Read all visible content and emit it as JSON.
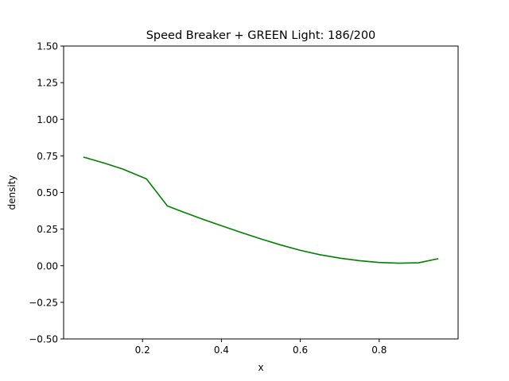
{
  "chart_data": {
    "type": "line",
    "title": "Speed Breaker + GREEN Light: 186/200",
    "xlabel": "x",
    "ylabel": "density",
    "xlim": [
      0.0,
      1.0
    ],
    "ylim": [
      -0.5,
      1.5
    ],
    "xticks": [
      0.2,
      0.4,
      0.6,
      0.8
    ],
    "xtick_labels": [
      "0.2",
      "0.4",
      "0.6",
      "0.8"
    ],
    "yticks": [
      -0.5,
      -0.25,
      0.0,
      0.25,
      0.5,
      0.75,
      1.0,
      1.25,
      1.5
    ],
    "ytick_labels": [
      "−0.50",
      "−0.25",
      "0.00",
      "0.25",
      "0.50",
      "0.75",
      "1.00",
      "1.25",
      "1.50"
    ],
    "grid": false,
    "legend": "none",
    "series": [
      {
        "color": "#008000",
        "x": [
          0.05,
          0.1,
          0.15,
          0.21,
          0.263,
          0.3,
          0.35,
          0.4,
          0.45,
          0.5,
          0.55,
          0.6,
          0.65,
          0.7,
          0.75,
          0.8,
          0.85,
          0.9,
          0.95
        ],
        "y": [
          0.742,
          0.703,
          0.66,
          0.593,
          0.408,
          0.37,
          0.32,
          0.273,
          0.227,
          0.183,
          0.142,
          0.105,
          0.075,
          0.052,
          0.034,
          0.022,
          0.017,
          0.02,
          0.048
        ]
      }
    ]
  }
}
